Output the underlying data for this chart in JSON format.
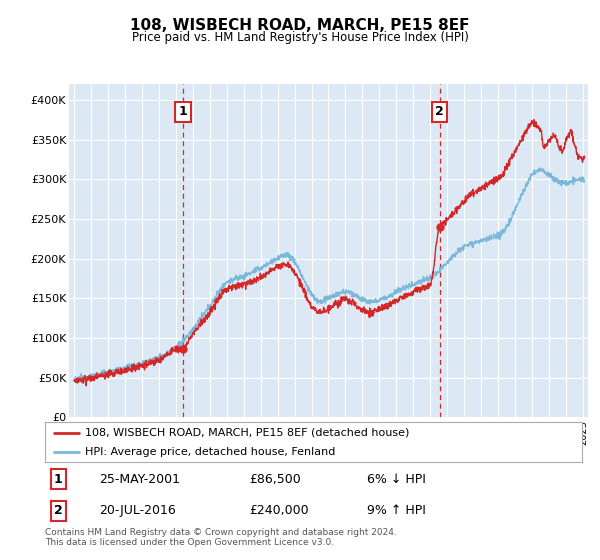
{
  "title": "108, WISBECH ROAD, MARCH, PE15 8EF",
  "subtitle": "Price paid vs. HM Land Registry's House Price Index (HPI)",
  "plot_bg_color": "#dce9f5",
  "hpi_color": "#7ab8d9",
  "price_color": "#d62728",
  "ylim": [
    0,
    420000
  ],
  "yticks": [
    0,
    50000,
    100000,
    150000,
    200000,
    250000,
    300000,
    350000,
    400000
  ],
  "ytick_labels": [
    "£0",
    "£50K",
    "£100K",
    "£150K",
    "£200K",
    "£250K",
    "£300K",
    "£350K",
    "£400K"
  ],
  "xlim_start": 1994.7,
  "xlim_end": 2025.3,
  "sale1_x": 2001.4,
  "sale1_y": 86500,
  "sale2_x": 2016.55,
  "sale2_y": 240000,
  "legend_label_price": "108, WISBECH ROAD, MARCH, PE15 8EF (detached house)",
  "legend_label_hpi": "HPI: Average price, detached house, Fenland",
  "ann1_date": "25-MAY-2001",
  "ann1_price": "£86,500",
  "ann1_hpi": "6% ↓ HPI",
  "ann2_date": "20-JUL-2016",
  "ann2_price": "£240,000",
  "ann2_hpi": "9% ↑ HPI",
  "footer": "Contains HM Land Registry data © Crown copyright and database right 2024.\nThis data is licensed under the Open Government Licence v3.0."
}
